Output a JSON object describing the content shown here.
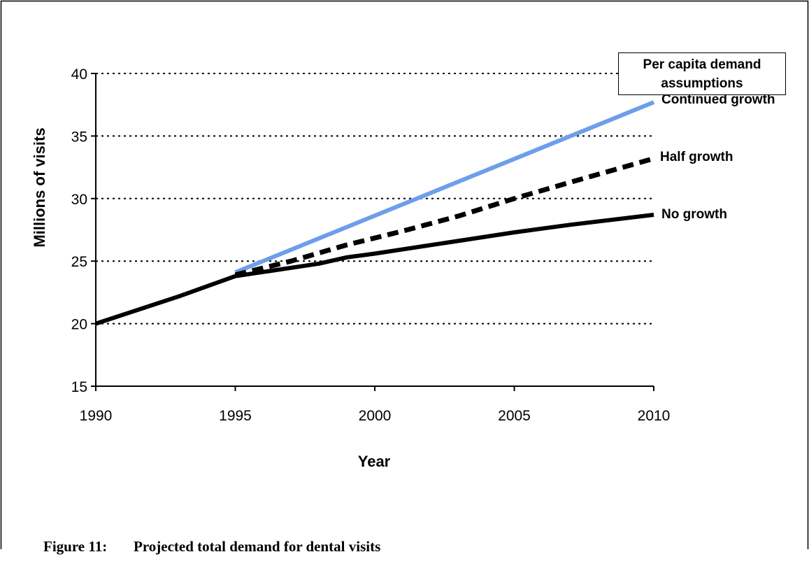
{
  "chart_data": {
    "type": "line",
    "xlabel": "Year",
    "ylabel": "Millions of visits",
    "xlim": [
      1990,
      2010
    ],
    "ylim": [
      15,
      40
    ],
    "xticks": [
      "1990",
      "1995",
      "2000",
      "2005",
      "2010"
    ],
    "yticks": [
      "15",
      "20",
      "25",
      "30",
      "35",
      "40"
    ],
    "grid": "horizontal dotted",
    "legend_title": "Per capita demand assumptions",
    "series": [
      {
        "name": "Continued growth",
        "color": "#6d9eeb",
        "style": "solid",
        "x": [
          1995,
          2010
        ],
        "y": [
          24.1,
          37.7
        ]
      },
      {
        "name": "Half growth",
        "color": "#000000",
        "style": "dashed",
        "x": [
          1995,
          1997,
          1999,
          2001,
          2003,
          2005,
          2007,
          2010
        ],
        "y": [
          23.9,
          25.0,
          26.3,
          27.4,
          28.6,
          30.0,
          31.3,
          33.2
        ]
      },
      {
        "name": "No growth",
        "color": "#000000",
        "style": "solid",
        "x": [
          1990,
          1993,
          1995,
          1998,
          1999,
          2000,
          2005,
          2007,
          2010
        ],
        "y": [
          20.0,
          22.2,
          23.8,
          24.8,
          25.3,
          25.6,
          27.3,
          27.9,
          28.7
        ]
      }
    ]
  },
  "caption": {
    "figure_number": "Figure 11:",
    "text": "Projected total demand for dental visits"
  }
}
